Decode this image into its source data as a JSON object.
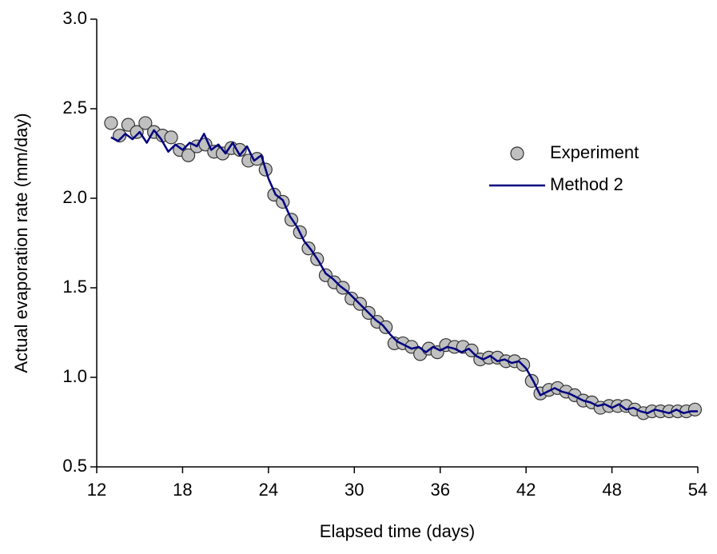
{
  "chart_data": {
    "type": "scatter",
    "x_label": "Elapsed time (days)",
    "y_label": "Actual evaporation rate (mm/day)",
    "xlim": [
      12,
      54
    ],
    "xticks": [
      12,
      18,
      24,
      30,
      36,
      42,
      48,
      54
    ],
    "ylim": [
      0.5,
      3.0
    ],
    "yticks": [
      0.5,
      {
        "value": 1,
        "label": "1.0"
      },
      1.5,
      {
        "value": 2,
        "label": "2.0"
      },
      2.5,
      {
        "value": 3,
        "label": "3.0"
      }
    ],
    "legend": "right",
    "series": [
      {
        "name": "Experiment",
        "type": "scatter",
        "color": "#c0c0c0",
        "x": [
          13.0,
          13.6,
          14.2,
          14.8,
          15.4,
          16.0,
          16.6,
          17.2,
          17.8,
          18.4,
          19.0,
          19.6,
          20.2,
          20.8,
          21.4,
          22.0,
          22.6,
          23.2,
          23.8,
          24.4,
          25.0,
          25.6,
          26.2,
          26.8,
          27.4,
          28.0,
          28.6,
          29.2,
          29.8,
          30.4,
          31.0,
          31.6,
          32.2,
          32.8,
          33.4,
          34.0,
          34.6,
          35.2,
          35.8,
          36.4,
          37.0,
          37.6,
          38.2,
          38.8,
          39.4,
          40.0,
          40.6,
          41.2,
          41.8,
          42.4,
          43.0,
          43.6,
          44.2,
          44.8,
          45.4,
          46.0,
          46.6,
          47.2,
          47.8,
          48.4,
          49.0,
          49.6,
          50.2,
          50.8,
          51.4,
          52.0,
          52.6,
          53.2,
          53.8
        ],
        "values": [
          2.42,
          2.35,
          2.41,
          2.37,
          2.42,
          2.37,
          2.35,
          2.34,
          2.27,
          2.24,
          2.29,
          2.3,
          2.26,
          2.25,
          2.28,
          2.27,
          2.21,
          2.22,
          2.16,
          2.02,
          1.98,
          1.88,
          1.81,
          1.72,
          1.66,
          1.57,
          1.53,
          1.5,
          1.44,
          1.41,
          1.36,
          1.31,
          1.28,
          1.19,
          1.19,
          1.17,
          1.13,
          1.16,
          1.14,
          1.18,
          1.17,
          1.17,
          1.15,
          1.1,
          1.11,
          1.11,
          1.09,
          1.09,
          1.07,
          0.98,
          0.91,
          0.93,
          0.94,
          0.92,
          0.9,
          0.87,
          0.86,
          0.83,
          0.84,
          0.84,
          0.84,
          0.82,
          0.8,
          0.81,
          0.81,
          0.81,
          0.81,
          0.81,
          0.82
        ]
      },
      {
        "name": "Method 2",
        "type": "line",
        "color": "#000080",
        "x": [
          13.0,
          13.5,
          14.0,
          14.5,
          15.0,
          15.5,
          16.0,
          16.5,
          17.0,
          17.5,
          18.0,
          18.5,
          19.0,
          19.5,
          20.0,
          20.5,
          21.0,
          21.5,
          22.0,
          22.5,
          23.0,
          23.5,
          24.0,
          24.5,
          25.0,
          25.5,
          26.0,
          26.5,
          27.0,
          27.5,
          28.0,
          28.5,
          29.0,
          29.5,
          30.0,
          30.5,
          31.0,
          31.5,
          32.0,
          32.5,
          33.0,
          33.5,
          34.0,
          34.5,
          35.0,
          35.5,
          36.0,
          36.5,
          37.0,
          37.5,
          38.0,
          38.5,
          39.0,
          39.5,
          40.0,
          40.5,
          41.0,
          41.5,
          42.0,
          42.5,
          43.0,
          43.5,
          44.0,
          44.5,
          45.0,
          45.5,
          46.0,
          46.5,
          47.0,
          47.5,
          48.0,
          48.5,
          49.0,
          49.5,
          50.0,
          50.5,
          51.0,
          51.5,
          52.0,
          52.5,
          53.0,
          53.5,
          54.0
        ],
        "values": [
          2.34,
          2.32,
          2.36,
          2.33,
          2.37,
          2.31,
          2.38,
          2.33,
          2.26,
          2.3,
          2.27,
          2.31,
          2.29,
          2.36,
          2.27,
          2.3,
          2.25,
          2.31,
          2.24,
          2.29,
          2.21,
          2.24,
          2.11,
          2.02,
          1.99,
          1.9,
          1.84,
          1.76,
          1.71,
          1.65,
          1.58,
          1.55,
          1.51,
          1.48,
          1.44,
          1.4,
          1.36,
          1.32,
          1.29,
          1.24,
          1.2,
          1.18,
          1.16,
          1.17,
          1.14,
          1.17,
          1.15,
          1.17,
          1.16,
          1.14,
          1.16,
          1.12,
          1.1,
          1.12,
          1.09,
          1.1,
          1.08,
          1.09,
          1.05,
          0.98,
          0.9,
          0.92,
          0.94,
          0.92,
          0.91,
          0.89,
          0.87,
          0.86,
          0.84,
          0.85,
          0.83,
          0.85,
          0.82,
          0.83,
          0.81,
          0.8,
          0.82,
          0.81,
          0.8,
          0.82,
          0.8,
          0.81,
          0.81
        ]
      }
    ]
  }
}
